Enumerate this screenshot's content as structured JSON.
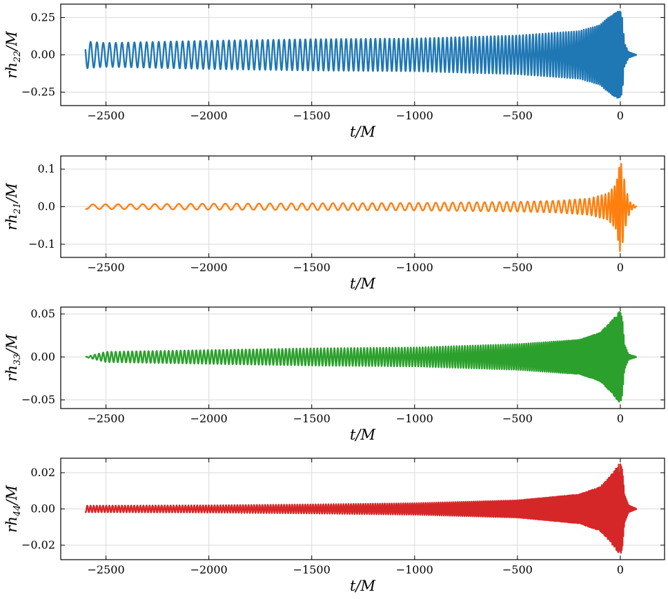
{
  "chart_data": [
    {
      "type": "line",
      "ylabel": "rh22/M",
      "ylabel_main": "rh",
      "ylabel_sub": "22",
      "ylabel_tail": "/M",
      "xlabel": "t/M",
      "color": "#1f77b4",
      "xlim": [
        -2720,
        2720
      ],
      "xlim_right": 215,
      "ylim": [
        -0.34,
        0.34
      ],
      "xticks": [
        -2500,
        -2000,
        -1500,
        -1000,
        -500,
        0
      ],
      "xtick_labels": [
        "−2500",
        "−2000",
        "−1500",
        "−1000",
        "−500",
        "0"
      ],
      "yticks": [
        0.25,
        0.0,
        -0.25
      ],
      "ytick_labels": [
        "0.25",
        "0.00",
        "−0.25"
      ],
      "grid": true,
      "series": [
        {
          "x": [
            -2600,
            -2500,
            -2000,
            -1500,
            -1000,
            -500,
            -200,
            -100,
            -50,
            0,
            10,
            20,
            40,
            80
          ],
          "y": [
            0.09,
            0.08,
            0.095,
            0.105,
            0.11,
            0.13,
            0.16,
            0.2,
            0.26,
            0.3,
            0.25,
            0.08,
            0.02,
            0.0
          ]
        }
      ]
    },
    {
      "type": "line",
      "ylabel": "rh21/M",
      "ylabel_main": "rh",
      "ylabel_sub": "21",
      "ylabel_tail": "/M",
      "xlabel": "t/M",
      "color": "#ff7f0e",
      "xlim": [
        -2720,
        215
      ],
      "ylim": [
        -0.135,
        0.135
      ],
      "xticks": [
        -2500,
        -2000,
        -1500,
        -1000,
        -500,
        0
      ],
      "xtick_labels": [
        "−2500",
        "−2000",
        "−1500",
        "−1000",
        "−500",
        "0"
      ],
      "yticks": [
        0.1,
        0.0,
        -0.1
      ],
      "ytick_labels": [
        "0.1",
        "0.0",
        "−0.1"
      ],
      "grid": true,
      "series": [
        {
          "x": [
            -2600,
            -2000,
            -1500,
            -1000,
            -500,
            -300,
            -150,
            -60,
            -20,
            0,
            10,
            30,
            50,
            80
          ],
          "y": [
            0.006,
            0.008,
            0.009,
            0.01,
            0.013,
            0.016,
            0.022,
            0.035,
            0.06,
            0.125,
            0.1,
            0.04,
            0.01,
            0.0
          ]
        }
      ]
    },
    {
      "type": "line",
      "ylabel": "rh33/M",
      "ylabel_main": "rh",
      "ylabel_sub": "33",
      "ylabel_tail": "/M",
      "xlabel": "t/M",
      "color": "#2ca02c",
      "xlim": [
        -2720,
        215
      ],
      "ylim": [
        -0.06,
        0.058
      ],
      "xticks": [
        -2500,
        -2000,
        -1500,
        -1000,
        -500,
        0
      ],
      "xtick_labels": [
        "−2500",
        "−2000",
        "−1500",
        "−1000",
        "−500",
        "0"
      ],
      "yticks": [
        0.05,
        0.0,
        -0.05
      ],
      "ytick_labels": [
        "0.05",
        "0.00",
        "−0.05"
      ],
      "grid": true,
      "series": [
        {
          "x": [
            -2600,
            -2500,
            -2000,
            -1500,
            -1000,
            -500,
            -200,
            -100,
            -50,
            0,
            10,
            20,
            40,
            80
          ],
          "y": [
            0.0,
            0.006,
            0.008,
            0.01,
            0.011,
            0.015,
            0.02,
            0.028,
            0.04,
            0.054,
            0.045,
            0.015,
            0.003,
            0.0
          ]
        }
      ]
    },
    {
      "type": "line",
      "ylabel": "rh44/M",
      "ylabel_main": "rh",
      "ylabel_sub": "44",
      "ylabel_tail": "/M",
      "xlabel": "t/M",
      "color": "#d62728",
      "xlim": [
        -2720,
        215
      ],
      "ylim": [
        -0.028,
        0.028
      ],
      "xticks": [
        -2500,
        -2000,
        -1500,
        -1000,
        -500,
        0
      ],
      "xtick_labels": [
        "−2500",
        "−2000",
        "−1500",
        "−1000",
        "−500",
        "0"
      ],
      "yticks": [
        0.02,
        0.0,
        -0.02
      ],
      "ytick_labels": [
        "0.02",
        "0.00",
        "−0.02"
      ],
      "grid": true,
      "series": [
        {
          "x": [
            -2600,
            -2000,
            -1500,
            -1000,
            -500,
            -200,
            -100,
            -50,
            0,
            10,
            20,
            40,
            80
          ],
          "y": [
            0.0018,
            0.002,
            0.0025,
            0.0032,
            0.0048,
            0.008,
            0.012,
            0.018,
            0.026,
            0.022,
            0.008,
            0.002,
            0.0
          ]
        }
      ]
    }
  ]
}
